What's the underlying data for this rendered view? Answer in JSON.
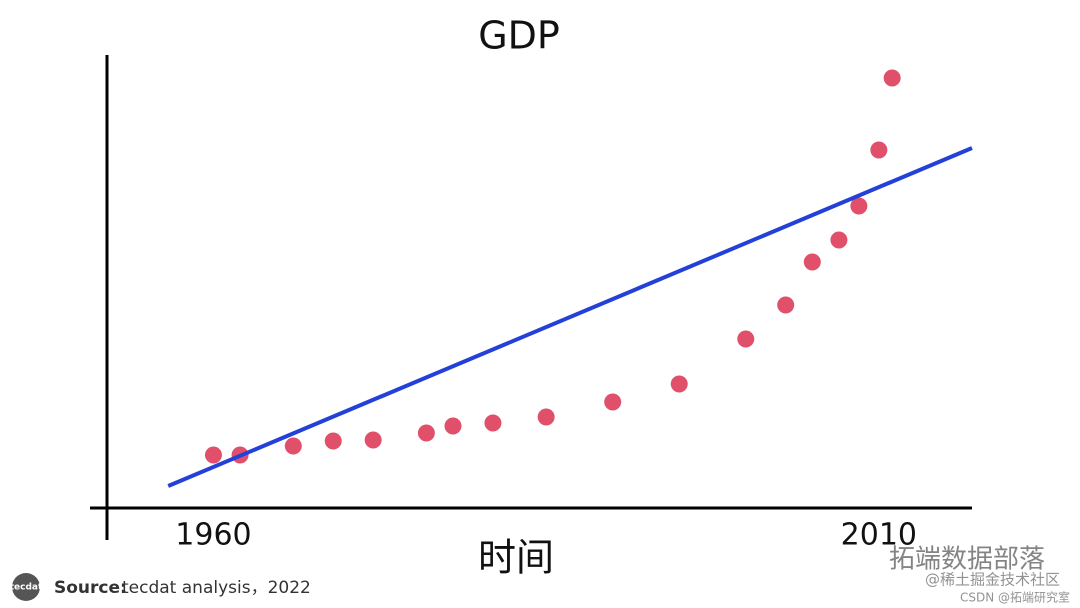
{
  "chart_data": {
    "type": "scatter",
    "title": "GDP",
    "x_label": "时间",
    "xlim": [
      1952,
      2017
    ],
    "ylim": [
      0,
      453
    ],
    "xticks": [
      1960,
      2010
    ],
    "grid": false,
    "series": [
      {
        "type": "scatter",
        "color": "#e0506a",
        "x": [
          1960,
          1962,
          1966,
          1969,
          1972,
          1976,
          1978,
          1981,
          1985,
          1990,
          1995,
          2000,
          2003,
          2005,
          2007,
          2008.5,
          2010,
          2011
        ],
        "values": [
          53,
          53,
          62,
          67,
          68,
          75,
          82,
          85,
          91,
          106,
          124,
          169,
          203,
          246,
          268,
          302,
          358,
          430
        ]
      },
      {
        "type": "line",
        "color": "#2340d8",
        "x": [
          1956.6,
          2017
        ],
        "values": [
          22,
          360
        ]
      }
    ]
  },
  "source": {
    "label": "Source:",
    "text": "tecdat analysis，2022",
    "logo": "tecdat"
  },
  "watermarks": [
    "拓端数据部落",
    "@稀土掘金技术社区",
    "CSDN @拓端研究室"
  ]
}
